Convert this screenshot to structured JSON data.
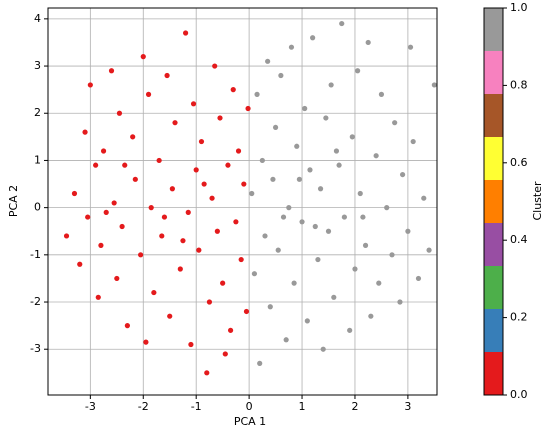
{
  "chart_data": {
    "type": "scatter",
    "x_label": "PCA 1",
    "y_label": "PCA 2",
    "colorbar_label": "Cluster",
    "x": [
      -3.45,
      -3.3,
      -3.2,
      -3.1,
      -3.0,
      -3.05,
      -2.9,
      -2.85,
      -2.8,
      -2.75,
      -2.6,
      -2.55,
      -2.5,
      -2.45,
      -2.4,
      -2.3,
      -2.2,
      -2.15,
      -2.05,
      -2.0,
      -1.95,
      -1.9,
      -1.85,
      -1.8,
      -1.7,
      -1.65,
      -1.55,
      -1.5,
      -1.45,
      -1.4,
      -1.3,
      -1.2,
      -1.15,
      -1.1,
      -1.05,
      -1.0,
      -0.95,
      -0.9,
      -0.8,
      -0.75,
      -0.7,
      -0.65,
      -0.6,
      -0.55,
      -0.5,
      -0.4,
      -0.35,
      -0.3,
      -0.25,
      -0.2,
      -0.15,
      -0.1,
      -0.05,
      -0.02,
      -1.6,
      -2.35,
      -0.85,
      -1.25,
      -0.45,
      -2.7,
      0.05,
      0.1,
      0.15,
      0.2,
      0.25,
      0.3,
      0.35,
      0.4,
      0.45,
      0.5,
      0.55,
      0.6,
      0.7,
      0.75,
      0.8,
      0.85,
      0.9,
      1.0,
      1.05,
      1.1,
      1.15,
      1.2,
      1.3,
      1.35,
      1.4,
      1.45,
      1.5,
      1.55,
      1.6,
      1.7,
      1.75,
      1.8,
      1.9,
      1.95,
      2.0,
      2.05,
      2.1,
      2.2,
      2.25,
      2.3,
      2.4,
      2.45,
      2.5,
      2.6,
      2.7,
      2.75,
      2.85,
      2.9,
      3.0,
      3.05,
      3.1,
      3.2,
      3.3,
      3.4,
      3.5,
      0.65,
      1.25,
      2.15,
      0.95,
      1.65
    ],
    "y": [
      -0.6,
      0.3,
      -1.2,
      1.6,
      2.6,
      -0.2,
      0.9,
      -1.9,
      -0.8,
      1.2,
      2.9,
      0.1,
      -1.5,
      2.0,
      -0.4,
      -2.5,
      1.5,
      0.6,
      -1.0,
      3.2,
      -2.85,
      2.4,
      0.0,
      -1.8,
      1.0,
      -0.6,
      2.8,
      -2.3,
      0.4,
      1.8,
      -1.3,
      3.7,
      -0.1,
      -2.9,
      2.2,
      0.8,
      -0.9,
      1.4,
      -3.5,
      -2.0,
      0.2,
      3.0,
      -0.5,
      1.9,
      -1.6,
      0.9,
      -2.6,
      2.5,
      -0.3,
      1.2,
      -1.1,
      0.5,
      -2.2,
      2.1,
      -0.2,
      0.9,
      0.5,
      -0.7,
      -3.1,
      -0.1,
      0.3,
      -1.4,
      2.4,
      -3.3,
      1.0,
      -0.6,
      3.1,
      -2.1,
      0.6,
      1.7,
      -0.9,
      2.8,
      -2.8,
      0.0,
      3.4,
      -1.6,
      1.3,
      -0.3,
      2.1,
      -2.4,
      0.8,
      3.6,
      -1.1,
      0.4,
      -3.0,
      1.9,
      -0.5,
      2.6,
      -1.9,
      0.9,
      3.9,
      -0.2,
      -2.6,
      1.5,
      -1.3,
      2.9,
      0.3,
      -0.8,
      3.5,
      -2.3,
      1.1,
      -1.6,
      2.4,
      0.0,
      -1.0,
      1.8,
      -2.0,
      0.7,
      -0.5,
      3.4,
      1.4,
      -1.5,
      0.2,
      -0.9,
      2.6,
      -0.2,
      -0.4,
      -0.2,
      0.6,
      1.2
    ],
    "c": [
      0,
      0,
      0,
      0,
      0,
      0,
      0,
      0,
      0,
      0,
      0,
      0,
      0,
      0,
      0,
      0,
      0,
      0,
      0,
      0,
      0,
      0,
      0,
      0,
      0,
      0,
      0,
      0,
      0,
      0,
      0,
      0,
      0,
      0,
      0,
      0,
      0,
      0,
      0,
      0,
      0,
      0,
      0,
      0,
      0,
      0,
      0,
      0,
      0,
      0,
      0,
      0,
      0,
      0,
      0,
      0,
      0,
      0,
      0,
      0,
      1,
      1,
      1,
      1,
      1,
      1,
      1,
      1,
      1,
      1,
      1,
      1,
      1,
      1,
      1,
      1,
      1,
      1,
      1,
      1,
      1,
      1,
      1,
      1,
      1,
      1,
      1,
      1,
      1,
      1,
      1,
      1,
      1,
      1,
      1,
      1,
      1,
      1,
      1,
      1,
      1,
      1,
      1,
      1,
      1,
      1,
      1,
      1,
      1,
      1,
      1,
      1,
      1,
      1,
      1,
      1,
      1,
      1,
      1,
      1
    ],
    "colormap": [
      "#e41a1c",
      "#377eb8",
      "#4daf4a",
      "#984ea3",
      "#ff7f00",
      "#ffff33",
      "#a65628",
      "#f781bf",
      "#999999"
    ],
    "clim": [
      0,
      1
    ],
    "cticks": [
      {
        "value": 0,
        "label": "0.0"
      },
      {
        "value": 0.2,
        "label": "0.2"
      },
      {
        "value": 0.4,
        "label": "0.4"
      },
      {
        "value": 0.6,
        "label": "0.6"
      },
      {
        "value": 0.8,
        "label": "0.8"
      },
      {
        "value": 1,
        "label": "1.0"
      }
    ],
    "xlim": [
      -3.8,
      3.55
    ],
    "xticks": [
      -3,
      -2,
      -1,
      0,
      1,
      2,
      3
    ],
    "ylim": [
      -3.97,
      4.23
    ],
    "yticks": [
      -3,
      -2,
      -1,
      0,
      1,
      2,
      3,
      4
    ],
    "grid": true
  }
}
